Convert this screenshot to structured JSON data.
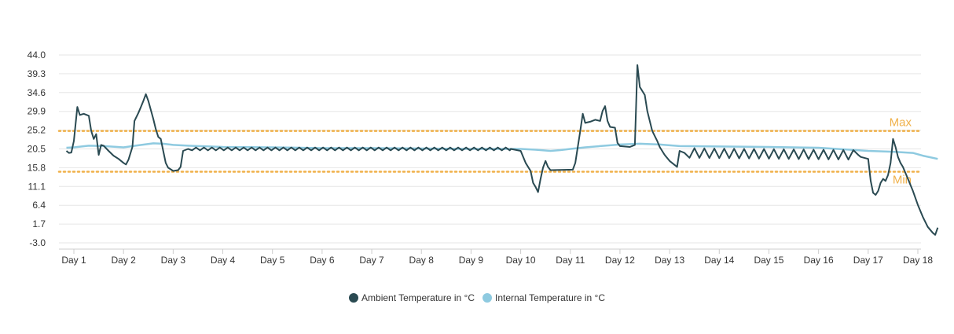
{
  "chart_data": {
    "type": "line",
    "title": "",
    "xlabel": "",
    "ylabel": "",
    "x_ticks": [
      "Day 1",
      "Day 2",
      "Day 3",
      "Day 4",
      "Day 5",
      "Day 6",
      "Day 7",
      "Day 8",
      "Day 9",
      "Day 10",
      "Day 11",
      "Day 12",
      "Day 13",
      "Day 14",
      "Day 15",
      "Day 16",
      "Day 17",
      "Day 18"
    ],
    "y_ticks": [
      "44.0",
      "39.3",
      "34.6",
      "29.9",
      "25.2",
      "20.5",
      "15.8",
      "11.1",
      "6.4",
      "1.7",
      "-3.0"
    ],
    "xlim": [
      0.8,
      18.2
    ],
    "ylim": [
      -3.0,
      44.0
    ],
    "grid": true,
    "legend_position": "bottom-center",
    "reference_lines": [
      {
        "label": "Max",
        "value": 25.0,
        "color": "#f0b14a"
      },
      {
        "label": "Min",
        "value": 14.8,
        "color": "#f0b14a"
      }
    ],
    "series": [
      {
        "name": "Ambient Temperature in °C",
        "color": "#2a4a52",
        "points": [
          [
            0.85,
            20.0
          ],
          [
            0.9,
            19.5
          ],
          [
            0.95,
            19.6
          ],
          [
            1.0,
            22.5
          ],
          [
            1.07,
            31.0
          ],
          [
            1.12,
            29.0
          ],
          [
            1.2,
            29.3
          ],
          [
            1.3,
            28.8
          ],
          [
            1.35,
            25.0
          ],
          [
            1.4,
            23.0
          ],
          [
            1.45,
            24.2
          ],
          [
            1.5,
            19.0
          ],
          [
            1.55,
            21.5
          ],
          [
            1.6,
            21.3
          ],
          [
            1.7,
            20.0
          ],
          [
            1.8,
            18.8
          ],
          [
            1.9,
            18.0
          ],
          [
            2.0,
            17.0
          ],
          [
            2.05,
            16.6
          ],
          [
            2.1,
            17.8
          ],
          [
            2.18,
            21.0
          ],
          [
            2.22,
            27.5
          ],
          [
            2.3,
            29.5
          ],
          [
            2.35,
            31.0
          ],
          [
            2.4,
            32.5
          ],
          [
            2.45,
            34.2
          ],
          [
            2.5,
            32.5
          ],
          [
            2.6,
            28.0
          ],
          [
            2.65,
            25.5
          ],
          [
            2.7,
            23.5
          ],
          [
            2.75,
            23.0
          ],
          [
            2.8,
            20.0
          ],
          [
            2.85,
            17.0
          ],
          [
            2.9,
            15.8
          ],
          [
            3.0,
            15.0
          ],
          [
            3.1,
            15.2
          ],
          [
            3.15,
            16.0
          ],
          [
            3.2,
            20.0
          ],
          [
            3.3,
            20.5
          ],
          [
            9.8,
            20.5
          ],
          [
            10.0,
            20.0
          ],
          [
            10.1,
            17.0
          ],
          [
            10.2,
            15.0
          ],
          [
            10.25,
            12.0
          ],
          [
            10.3,
            11.0
          ],
          [
            10.35,
            9.7
          ],
          [
            10.4,
            13.0
          ],
          [
            10.45,
            15.8
          ],
          [
            10.5,
            17.5
          ],
          [
            10.55,
            16.0
          ],
          [
            10.6,
            15.2
          ],
          [
            11.05,
            15.3
          ],
          [
            11.1,
            17.0
          ],
          [
            11.2,
            25.0
          ],
          [
            11.25,
            29.3
          ],
          [
            11.3,
            27.0
          ],
          [
            11.4,
            27.3
          ],
          [
            11.5,
            27.8
          ],
          [
            11.6,
            27.5
          ],
          [
            11.65,
            30.0
          ],
          [
            11.7,
            31.2
          ],
          [
            11.75,
            27.5
          ],
          [
            11.8,
            26.0
          ],
          [
            11.9,
            25.8
          ],
          [
            11.95,
            22.0
          ],
          [
            12.0,
            21.2
          ],
          [
            12.2,
            21.0
          ],
          [
            12.3,
            21.5
          ],
          [
            12.35,
            41.5
          ],
          [
            12.4,
            36.0
          ],
          [
            12.5,
            34.0
          ],
          [
            12.55,
            30.0
          ],
          [
            12.65,
            25.0
          ],
          [
            12.75,
            22.5
          ],
          [
            12.8,
            21.0
          ],
          [
            12.9,
            19.0
          ],
          [
            13.0,
            17.5
          ],
          [
            13.1,
            16.5
          ],
          [
            13.15,
            16.0
          ],
          [
            13.2,
            20.0
          ],
          [
            13.3,
            19.5
          ],
          [
            16.8,
            19.0
          ],
          [
            16.85,
            18.5
          ],
          [
            17.0,
            18.0
          ],
          [
            17.05,
            12.5
          ],
          [
            17.1,
            9.5
          ],
          [
            17.15,
            9.0
          ],
          [
            17.2,
            10.0
          ],
          [
            17.25,
            12.0
          ],
          [
            17.3,
            13.0
          ],
          [
            17.35,
            12.5
          ],
          [
            17.4,
            14.0
          ],
          [
            17.45,
            17.0
          ],
          [
            17.5,
            23.0
          ],
          [
            17.55,
            21.0
          ],
          [
            17.6,
            18.5
          ],
          [
            17.65,
            17.0
          ],
          [
            17.7,
            16.0
          ],
          [
            17.8,
            13.0
          ],
          [
            17.9,
            10.0
          ],
          [
            18.0,
            6.5
          ],
          [
            18.1,
            3.5
          ],
          [
            18.2,
            1.0
          ],
          [
            18.3,
            -0.5
          ],
          [
            18.35,
            -1.0
          ],
          [
            18.4,
            0.8
          ]
        ]
      },
      {
        "name": "Internal Temperature in °C",
        "color": "#8ecae0",
        "points": [
          [
            0.85,
            20.8
          ],
          [
            1.0,
            20.9
          ],
          [
            1.3,
            21.3
          ],
          [
            1.6,
            21.2
          ],
          [
            2.0,
            20.9
          ],
          [
            2.3,
            21.4
          ],
          [
            2.6,
            21.9
          ],
          [
            2.8,
            21.8
          ],
          [
            3.0,
            21.5
          ],
          [
            3.3,
            21.3
          ],
          [
            4.0,
            21.0
          ],
          [
            5.0,
            20.9
          ],
          [
            6.0,
            20.7
          ],
          [
            7.0,
            20.7
          ],
          [
            8.0,
            20.6
          ],
          [
            9.0,
            20.5
          ],
          [
            9.5,
            20.5
          ],
          [
            10.0,
            20.5
          ],
          [
            10.3,
            20.3
          ],
          [
            10.6,
            20.0
          ],
          [
            10.8,
            20.2
          ],
          [
            11.0,
            20.5
          ],
          [
            11.3,
            20.9
          ],
          [
            11.6,
            21.2
          ],
          [
            12.0,
            21.6
          ],
          [
            12.4,
            21.8
          ],
          [
            12.8,
            21.6
          ],
          [
            13.2,
            21.2
          ],
          [
            14.0,
            21.1
          ],
          [
            15.0,
            21.0
          ],
          [
            16.0,
            20.8
          ],
          [
            16.5,
            20.4
          ],
          [
            17.0,
            20.0
          ],
          [
            17.5,
            19.8
          ],
          [
            17.9,
            19.5
          ],
          [
            18.1,
            18.8
          ],
          [
            18.4,
            18.0
          ]
        ]
      }
    ]
  }
}
